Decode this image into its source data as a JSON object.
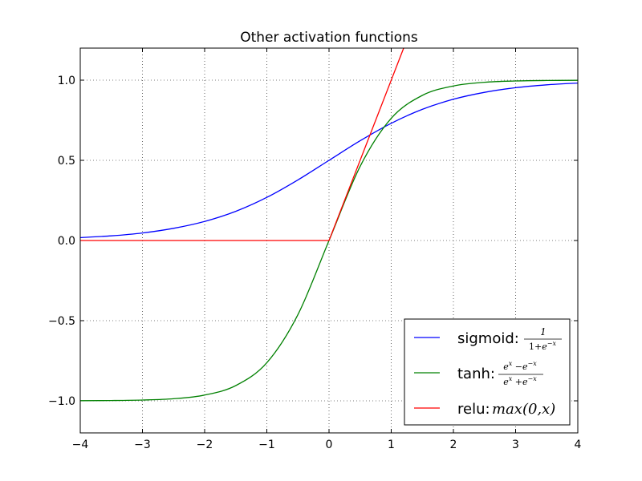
{
  "chart_data": {
    "type": "line",
    "title": "Other activation functions",
    "xlabel": "",
    "ylabel": "",
    "xlim": [
      -4,
      4
    ],
    "ylim": [
      -1.2,
      1.2
    ],
    "x_ticks": [
      -4,
      -3,
      -2,
      -1,
      0,
      1,
      2,
      3,
      4
    ],
    "x_tick_labels": [
      "−4",
      "−3",
      "−2",
      "−1",
      "0",
      "1",
      "2",
      "3",
      "4"
    ],
    "y_ticks": [
      -1.0,
      -0.5,
      0.0,
      0.5,
      1.0
    ],
    "y_tick_labels": [
      "−1.0",
      "−0.5",
      "0.0",
      "0.5",
      "1.0"
    ],
    "grid": true,
    "legend_position": "lower-right",
    "series": [
      {
        "name": "sigmoid",
        "color": "#0000ff",
        "x": [
          -4,
          -3.5,
          -3,
          -2.5,
          -2,
          -1.5,
          -1,
          -0.5,
          0,
          0.5,
          1,
          1.5,
          2,
          2.5,
          3,
          3.5,
          4
        ],
        "y": [
          0.018,
          0.029,
          0.047,
          0.076,
          0.119,
          0.182,
          0.269,
          0.378,
          0.5,
          0.622,
          0.731,
          0.818,
          0.881,
          0.924,
          0.953,
          0.971,
          0.982
        ]
      },
      {
        "name": "tanh",
        "color": "#008000",
        "x": [
          -4,
          -3.5,
          -3,
          -2.5,
          -2,
          -1.5,
          -1,
          -0.5,
          0,
          0.5,
          1,
          1.5,
          2,
          2.5,
          3,
          3.5,
          4
        ],
        "y": [
          -0.999,
          -0.998,
          -0.995,
          -0.987,
          -0.964,
          -0.905,
          -0.762,
          -0.462,
          0.0,
          0.462,
          0.762,
          0.905,
          0.964,
          0.987,
          0.995,
          0.998,
          0.999
        ]
      },
      {
        "name": "relu",
        "color": "#ff0000",
        "x": [
          -4,
          0,
          1.2
        ],
        "y": [
          0,
          0,
          1.2
        ]
      }
    ],
    "legend": [
      {
        "label": "sigmoid:",
        "formula": "sigmoid",
        "color": "#0000ff"
      },
      {
        "label": "tanh:",
        "formula": "tanh",
        "color": "#008000"
      },
      {
        "label": "relu:",
        "formula": "max(0,x)",
        "color": "#ff0000"
      }
    ]
  }
}
